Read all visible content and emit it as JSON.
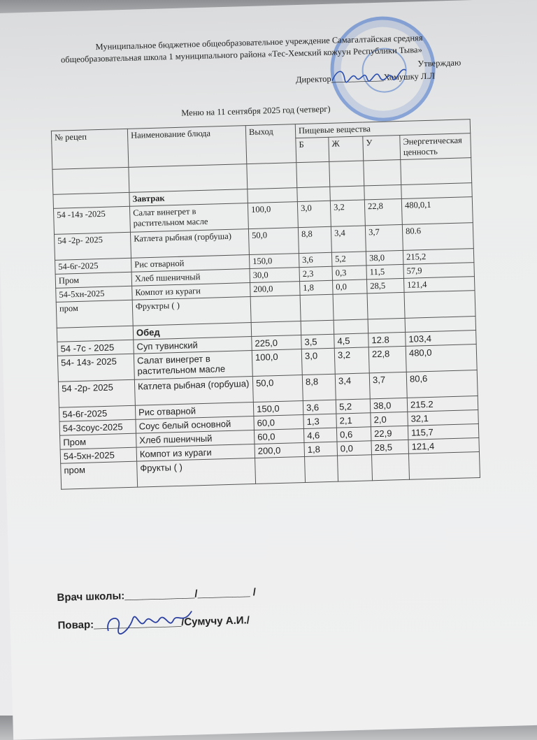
{
  "header": {
    "org_line1": "Муниципальное бюджетное общеобразовательное учреждение Самагалтайская средняя",
    "org_line2": "общеобразовательная школа 1 муниципального района «Тес-Хемский кожуун Республики Тыва»",
    "approve": "Утверждаю",
    "director": "Директор____________Хомушку Л.Л",
    "title": "Меню на 11 сентября 2025 год (четверг)"
  },
  "table": {
    "headers": {
      "recipe": "№ рецеп",
      "name": "Наименование блюда",
      "output": "Выход",
      "nutrients": "Пищевые вещества",
      "b": "Б",
      "zh": "Ж",
      "u": "У",
      "energy": "Энергетическая ценность"
    },
    "sections": [
      {
        "title": "Завтрак",
        "rows": [
          [
            "54 -14з  -2025",
            "Салат винегрет в растительном масле",
            "100,0",
            "3,0",
            "3,2",
            "22,8",
            "480,0,1"
          ],
          [
            "54 -2р- 2025",
            "Катлета рыбная (горбуша)",
            "50,0",
            "8,8",
            "3,4",
            "3,7",
            "80.6"
          ],
          [
            "54-6г-2025",
            "Рис отварной",
            "150,0",
            "3,6",
            "5,2",
            "38,0",
            "215,2"
          ],
          [
            "Пром",
            "Хлеб пшеничный",
            "30,0",
            "2,3",
            "0,3",
            "11,5",
            "57,9"
          ],
          [
            "54-5хн-2025",
            "Компот из  кураги",
            "200,0",
            "1,8",
            "0,0",
            "28,5",
            "121,4"
          ],
          [
            "пром",
            "Фруктры (              )",
            "",
            "",
            "",
            "",
            ""
          ]
        ]
      },
      {
        "title": "Обед",
        "rows": [
          [
            "54 -7с - 2025",
            "Суп тувинский",
            "225,0",
            "3,5",
            "4,5",
            "12.8",
            "103,4"
          ],
          [
            "54- 14з- 2025",
            "Салат винегрет в растительном масле",
            "100,0",
            "3,0",
            "3,2",
            "22,8",
            "480,0"
          ],
          [
            "54 -2р- 2025",
            "Катлета рыбная (горбуша)",
            "50,0",
            "8,8",
            "3,4",
            "3,7",
            "80,6"
          ],
          [
            "54-6г-2025",
            "Рис отварной",
            "150,0",
            "3,6",
            "5,2",
            "38,0",
            "215.2"
          ],
          [
            "54-3соус-2025",
            "Соус белый основной",
            "60,0",
            "1,3",
            "2,1",
            "2,0",
            "32,1"
          ],
          [
            "Пром",
            "Хлеб пшеничный",
            "60,0",
            "4,6",
            "0,6",
            "22,9",
            "115,7"
          ],
          [
            "54-5хн-2025",
            "Компот из кураги",
            "200,0",
            "1,8",
            "0,0",
            "28,5",
            "121,4"
          ],
          [
            "пром",
            "Фрукты (                  )",
            "",
            "",
            "",
            "",
            ""
          ]
        ]
      }
    ]
  },
  "footer": {
    "doctor": "Врач школы:____________/_________ /",
    "cook": "Повар:_______________/Сумучу А.И./"
  },
  "colors": {
    "stamp": "#3c6ec8",
    "paper": "#eeeeef"
  }
}
